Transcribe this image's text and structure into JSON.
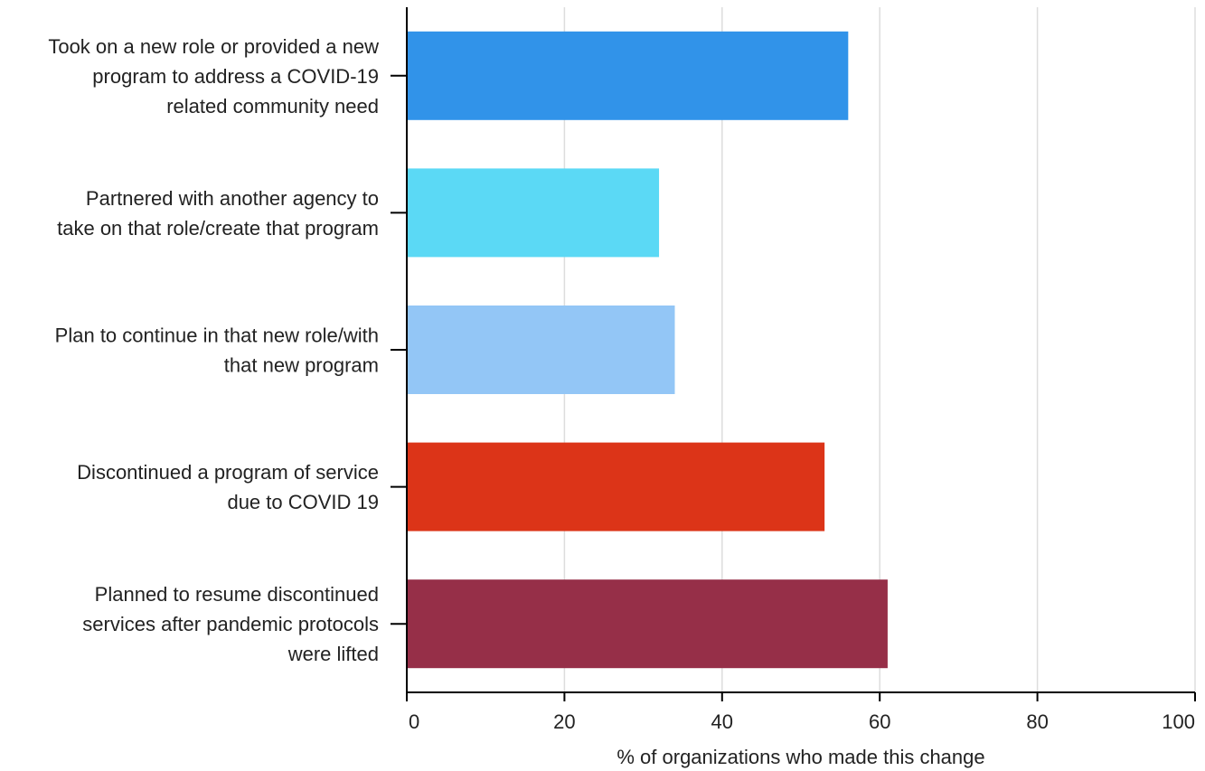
{
  "chart_data": {
    "type": "bar",
    "orientation": "horizontal",
    "categories": [
      [
        "Took on a new role or provided a new",
        "program to address a COVID-19",
        "related community need"
      ],
      [
        "Partnered with another agency to",
        "take on that role/create that program"
      ],
      [
        "Plan to continue in that new role/with",
        "that new program"
      ],
      [
        "Discontinued a program of service",
        "due to COVID 19"
      ],
      [
        "Planned to resume discontinued",
        "services after pandemic protocols",
        "were lifted"
      ]
    ],
    "values": [
      56,
      32,
      34,
      53,
      61
    ],
    "colors": [
      "#3193e9",
      "#5bd9f5",
      "#93c6f6",
      "#dc3418",
      "#962f48"
    ],
    "xlabel": "% of organizations who made this change",
    "ylabel": "",
    "title": "",
    "xlim": [
      0,
      100
    ],
    "xticks": [
      0,
      20,
      40,
      60,
      80,
      100
    ],
    "grid": true,
    "legend": "none"
  }
}
